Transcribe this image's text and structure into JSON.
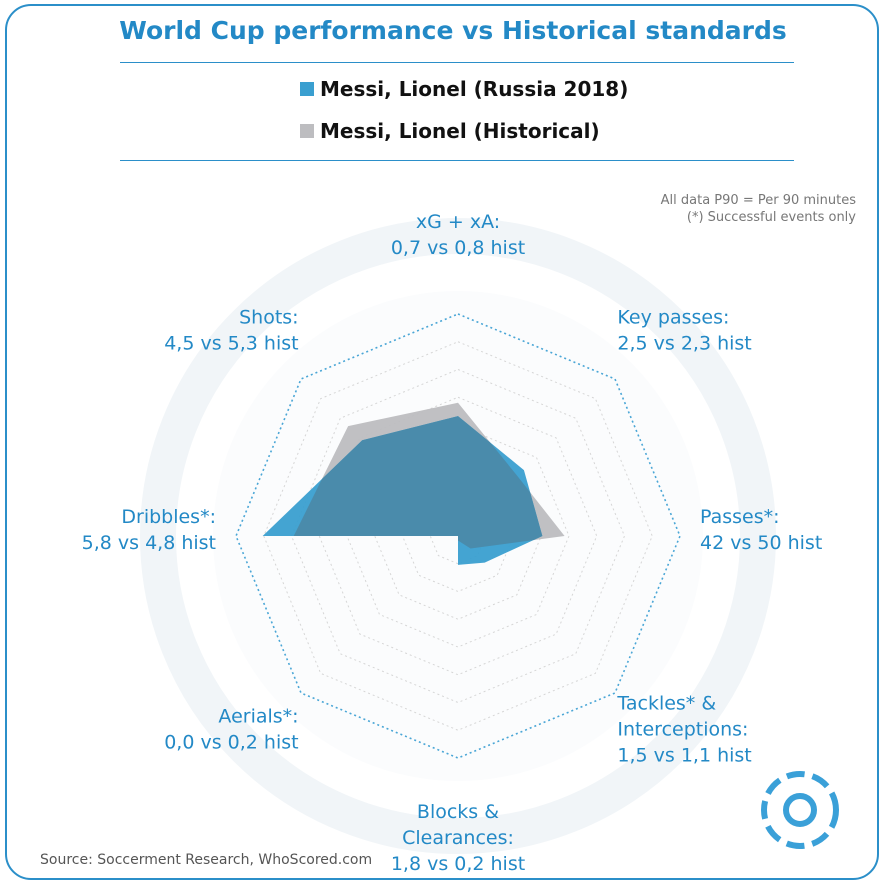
{
  "header": {
    "title": "World Cup performance vs Historical standards",
    "notes": [
      "All data P90 = Per 90 minutes",
      "(*) Successful events only"
    ],
    "source": "Source: Soccerment Research, WhoScored.com"
  },
  "colors": {
    "accent": "#2389c6",
    "series_current": "#3a9fd0",
    "series_historical": "#bdbdc0",
    "overlap": "#4a8bab"
  },
  "chart_data": {
    "type": "radar",
    "axes": [
      {
        "lines": [
          "xG + xA:",
          "0,7 vs 0,8 hist"
        ]
      },
      {
        "lines": [
          "Key passes:",
          "2,5 vs 2,3 hist"
        ]
      },
      {
        "lines": [
          "Passes*:",
          "42 vs 50 hist"
        ]
      },
      {
        "lines": [
          "Tackles* &",
          "Interceptions:",
          "1,5 vs 1,1 hist"
        ]
      },
      {
        "lines": [
          "Blocks &",
          "Clearances:",
          "1,8 vs 0,2 hist"
        ]
      },
      {
        "lines": [
          "Aerials*:",
          "0,0 vs 0,2 hist"
        ]
      },
      {
        "lines": [
          "Dribbles*:",
          "5,8 vs 4,8 hist"
        ]
      },
      {
        "lines": [
          "Shots:",
          "4,5 vs 5,3 hist"
        ]
      }
    ],
    "scale": [
      0,
      1
    ],
    "grid_levels": 8,
    "series": [
      {
        "name": "Messi, Lionel (Russia 2018)",
        "values": [
          0.54,
          0.42,
          0.38,
          0.17,
          0.13,
          0.0,
          0.88,
          0.61
        ]
      },
      {
        "name": "Messi, Lionel (Historical)",
        "values": [
          0.6,
          0.38,
          0.48,
          0.08,
          0.02,
          0.0,
          0.74,
          0.7
        ]
      }
    ]
  }
}
